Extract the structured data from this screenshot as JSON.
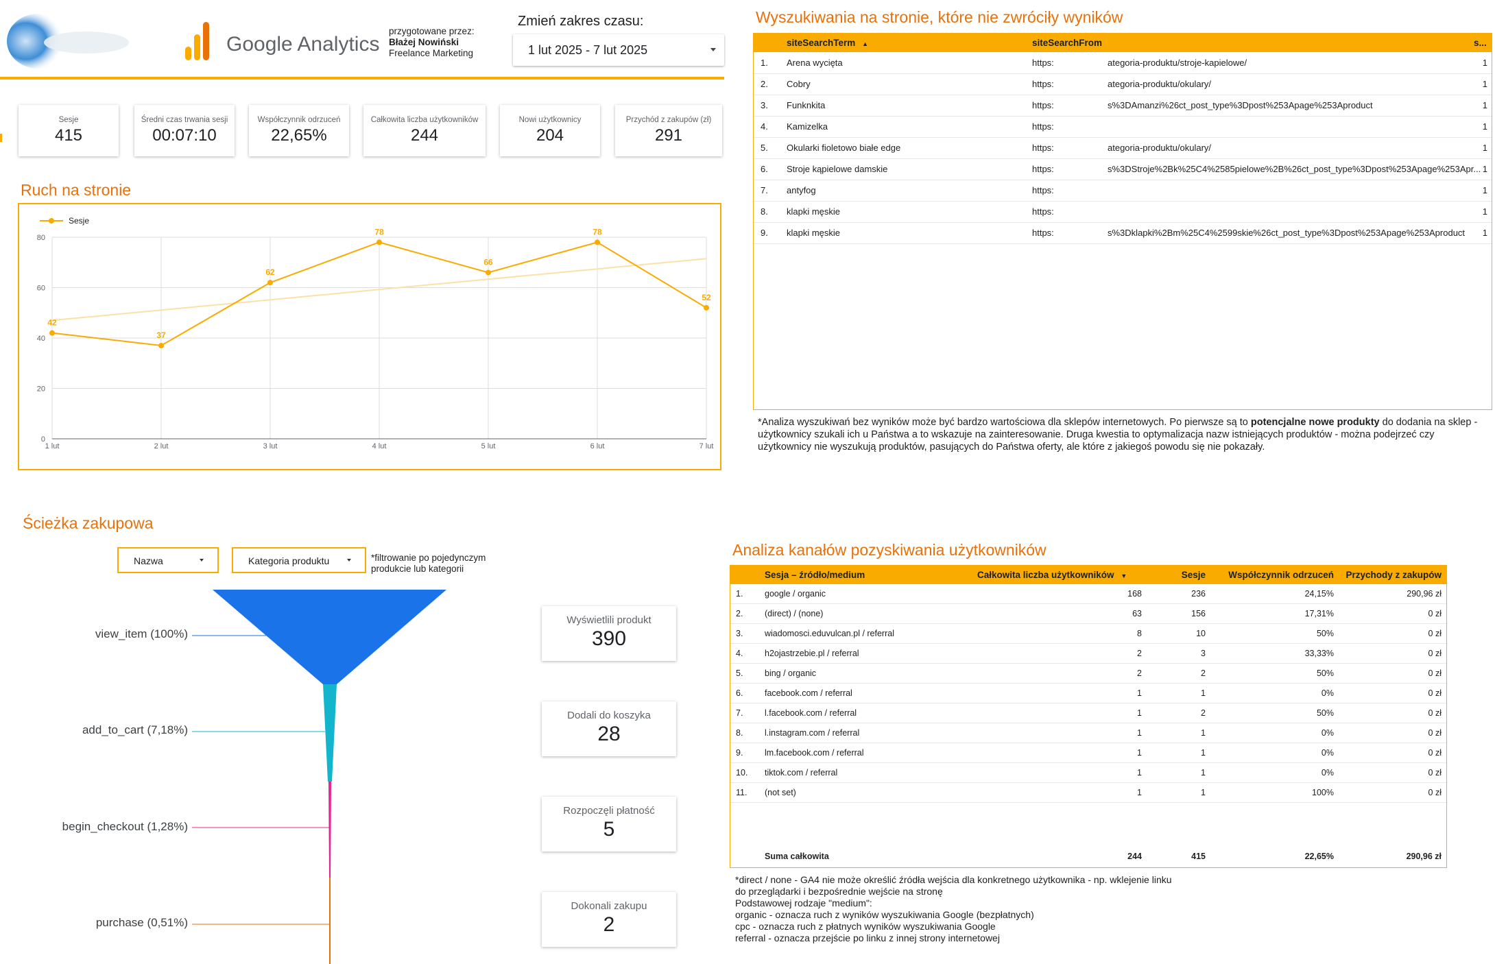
{
  "header": {
    "product": "Google Analytics",
    "prepared_by_label": "przygotowane przez:",
    "author": "Błażej Nowiński",
    "author_company": "Freelance Marketing",
    "date_range_label": "Zmień zakres czasu:",
    "date_range_value": "1 lut 2025 - 7 lut 2025"
  },
  "kpis": [
    {
      "label": "Sesje",
      "value": "415"
    },
    {
      "label": "Średni czas trwania sesji",
      "value": "00:07:10"
    },
    {
      "label": "Współczynnik odrzuceń",
      "value": "22,65%"
    },
    {
      "label": "Całkowita liczba użytkowników",
      "value": "244"
    },
    {
      "label": "Nowi użytkownicy",
      "value": "204"
    },
    {
      "label": "Przychód z zakupów (zł)",
      "value": "291"
    }
  ],
  "traffic": {
    "title": "Ruch na stronie"
  },
  "chart_data": {
    "type": "line",
    "title": "Ruch na stronie",
    "categories": [
      "1 lut",
      "2 lut",
      "3 lut",
      "4 lut",
      "5 lut",
      "6 lut",
      "7 lut"
    ],
    "series": [
      {
        "name": "Sesje",
        "values": [
          42,
          37,
          62,
          78,
          66,
          78,
          52
        ]
      }
    ],
    "trendline": {
      "start": 47,
      "end": 71.5
    },
    "ylim": [
      0,
      80
    ],
    "yticks": [
      0,
      20,
      40,
      60,
      80
    ],
    "grid": true,
    "legend": "top-left",
    "data_labels": true,
    "colors": {
      "series": "#f9ab00",
      "trend": "#fde0a6"
    }
  },
  "search": {
    "title": "Wyszukiwania na stronie, które nie zwróciły wyników",
    "columns": [
      "siteSearchTerm",
      "siteSearchFrom",
      "s..."
    ],
    "sort_indicator": "▲",
    "rows": [
      {
        "n": "1.",
        "term": "Arena wycięta",
        "from_a": "https:",
        "from_b": "ategoria-produktu/stroje-kapielowe/",
        "count": "1"
      },
      {
        "n": "2.",
        "term": "Cobry",
        "from_a": "https:",
        "from_b": "ategoria-produktu/okulary/",
        "count": "1"
      },
      {
        "n": "3.",
        "term": "Funknkita",
        "from_a": "https:",
        "from_b": "s%3DAmanzi%26ct_post_type%3Dpost%253Apage%253Aproduct",
        "count": "1"
      },
      {
        "n": "4.",
        "term": "Kamizelka",
        "from_a": "https:",
        "from_b": "",
        "count": "1"
      },
      {
        "n": "5.",
        "term": "Okularki fioletowo białe edge",
        "from_a": "https:",
        "from_b": "ategoria-produktu/okulary/",
        "count": "1"
      },
      {
        "n": "6.",
        "term": "Stroje kąpielowe damskie",
        "from_a": "https:",
        "from_b": "s%3DStroje%2Bk%25C4%2585pielowe%2B%26ct_post_type%3Dpost%253Apage%253Apr...",
        "count": "1"
      },
      {
        "n": "7.",
        "term": "antyfog",
        "from_a": "https:",
        "from_b": "",
        "count": "1"
      },
      {
        "n": "8.",
        "term": "klapki męskie",
        "from_a": "https:",
        "from_b": "",
        "count": "1"
      },
      {
        "n": "9.",
        "term": "klapki męskie",
        "from_a": "https:",
        "from_b": "s%3Dklapki%2Bm%25C4%2599skie%26ct_post_type%3Dpost%253Apage%253Aproduct",
        "count": "1"
      }
    ],
    "note_part1": "*Analiza wyszukiwań bez wyników może być bardzo wartościowa dla sklepów internetowych. Po pierwsze są to ",
    "note_bold": "potencjalne nowe produkty",
    "note_part2": " do dodania na sklep - użytkownicy szukali ich u Państwa a to wskazuje na zainteresowanie. Druga kwestia to optymalizacja nazw istniejących produktów - można podejrzeć czy użytkownicy nie wyszukują produktów, pasujących do Państwa oferty, ale które z jakiegoś powodu się nie pokazały."
  },
  "funnel": {
    "title": "Ścieżka zakupowa",
    "filter_name": "Nazwa",
    "filter_category": "Kategoria produktu",
    "filter_note": "*filtrowanie po pojedynczym produkcie lub kategorii",
    "stages": [
      {
        "label": "view_item (100%)",
        "fraction": 1.0,
        "color": "#1a73e8",
        "card_label": "Wyświetlili produkt",
        "card_value": "390"
      },
      {
        "label": "add_to_cart (7,18%)",
        "fraction": 0.0718,
        "color": "#12b5cb",
        "card_label": "Dodali do koszyka",
        "card_value": "28"
      },
      {
        "label": "begin_checkout (1,28%)",
        "fraction": 0.0128,
        "color": "#e52592",
        "card_label": "Rozpoczęli płatność",
        "card_value": "5"
      },
      {
        "label": "purchase (0,51%)",
        "fraction": 0.0051,
        "color": "#e8710a",
        "card_label": "Dokonali zakupu",
        "card_value": "2"
      }
    ]
  },
  "channels": {
    "title": "Analiza kanałów pozyskiwania użytkowników",
    "columns": [
      "Sesja – źródło/medium",
      "Całkowita liczba użytkowników",
      "Sesje",
      "Współczynnik odrzuceń",
      "Przychody z zakupów"
    ],
    "sort_indicator": "▼",
    "rows": [
      {
        "n": "1.",
        "src": "google / organic",
        "users": "168",
        "sessions": "236",
        "bounce": "24,15%",
        "revenue": "290,96 zł"
      },
      {
        "n": "2.",
        "src": "(direct) / (none)",
        "users": "63",
        "sessions": "156",
        "bounce": "17,31%",
        "revenue": "0 zł"
      },
      {
        "n": "3.",
        "src": "wiadomosci.eduvulcan.pl / referral",
        "users": "8",
        "sessions": "10",
        "bounce": "50%",
        "revenue": "0 zł"
      },
      {
        "n": "4.",
        "src": "h2ojastrzebie.pl / referral",
        "users": "2",
        "sessions": "3",
        "bounce": "33,33%",
        "revenue": "0 zł"
      },
      {
        "n": "5.",
        "src": "bing / organic",
        "users": "2",
        "sessions": "2",
        "bounce": "50%",
        "revenue": "0 zł"
      },
      {
        "n": "6.",
        "src": "facebook.com / referral",
        "users": "1",
        "sessions": "1",
        "bounce": "0%",
        "revenue": "0 zł"
      },
      {
        "n": "7.",
        "src": "l.facebook.com / referral",
        "users": "1",
        "sessions": "2",
        "bounce": "50%",
        "revenue": "0 zł"
      },
      {
        "n": "8.",
        "src": "l.instagram.com / referral",
        "users": "1",
        "sessions": "1",
        "bounce": "0%",
        "revenue": "0 zł"
      },
      {
        "n": "9.",
        "src": "lm.facebook.com / referral",
        "users": "1",
        "sessions": "1",
        "bounce": "0%",
        "revenue": "0 zł"
      },
      {
        "n": "10.",
        "src": "tiktok.com / referral",
        "users": "1",
        "sessions": "1",
        "bounce": "0%",
        "revenue": "0 zł"
      },
      {
        "n": "11.",
        "src": "(not set)",
        "users": "1",
        "sessions": "1",
        "bounce": "100%",
        "revenue": "0 zł"
      }
    ],
    "total": {
      "label": "Suma całkowita",
      "users": "244",
      "sessions": "415",
      "bounce": "22,65%",
      "revenue": "290,96 zł"
    },
    "notes": [
      "*direct / none - GA4 nie może określić źródła wejścia dla konkretnego użytkownika - np. wklejenie linku",
      "do przeglądarki i bezpośrednie wejście na stronę",
      "Podstawowej rodzaje \"medium\":",
      "organic - oznacza ruch z wyników wyszukiwania Google (bezpłatnych)",
      "cpc - oznacza ruch z płatnych wyników wyszukiwania Google",
      "referral - oznacza przejście po linku z innej strony internetowej"
    ]
  }
}
